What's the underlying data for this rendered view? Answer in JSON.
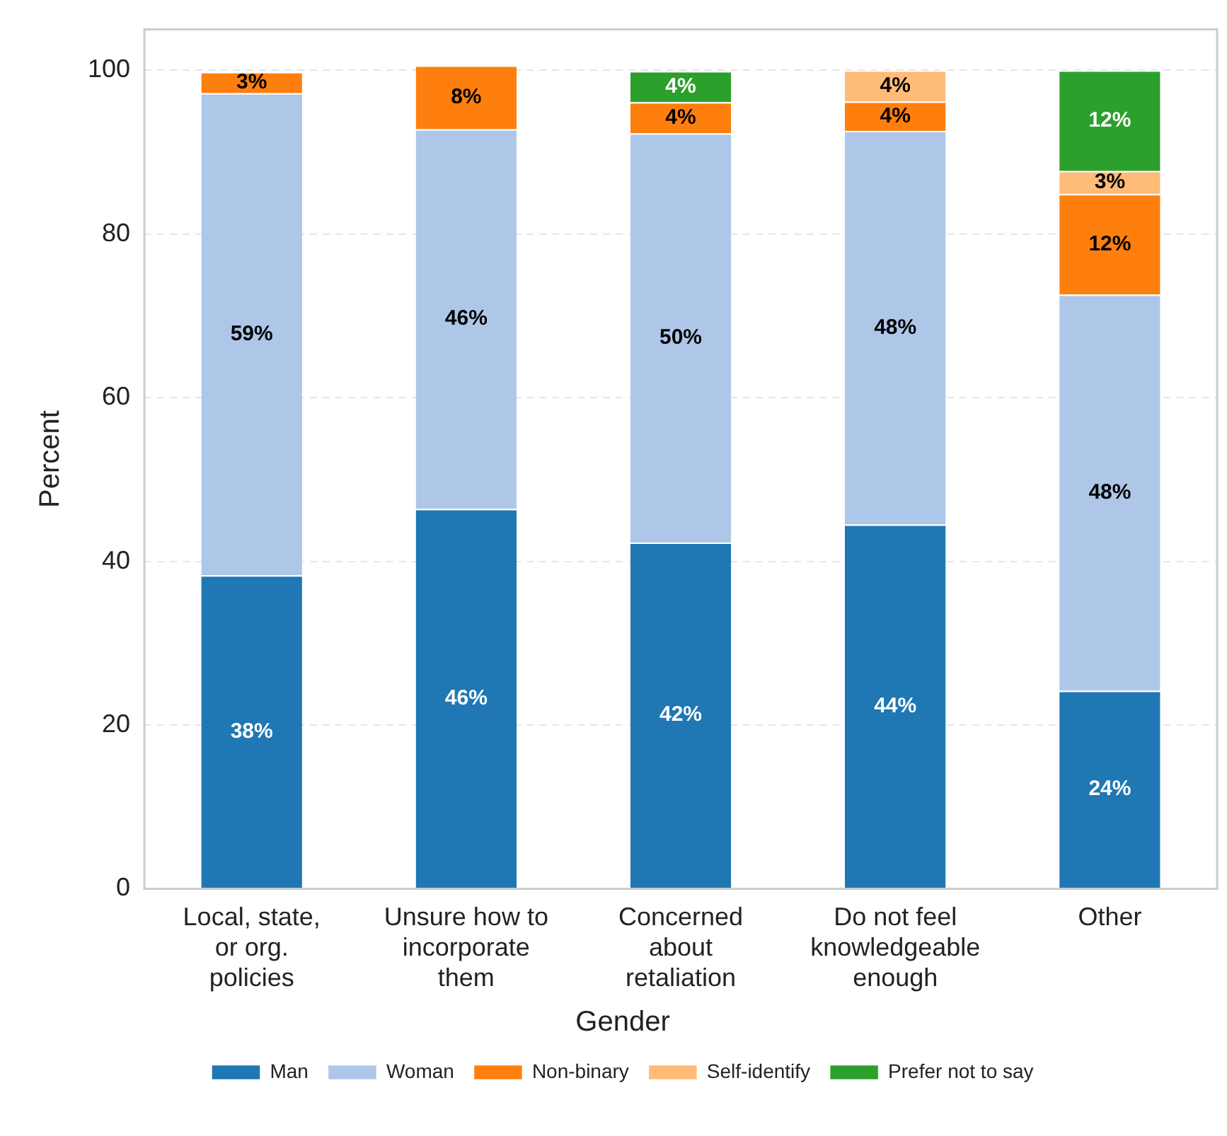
{
  "chart_data": {
    "type": "bar",
    "stacked": true,
    "ylabel": "Percent",
    "legend_title": "Gender",
    "legend": "bottom",
    "grid": "y",
    "categories": [
      "Local, state, or org. policies",
      "Unsure how to incorporate them",
      "Concerned about retaliation",
      "Do not feel knowledgeable enough",
      "Other"
    ],
    "ylim": [
      0,
      105
    ],
    "yticks": [
      0,
      20,
      40,
      60,
      80,
      100
    ],
    "series": [
      {
        "name": "Man",
        "color": "#1f77b4",
        "values": [
          38.3,
          46.4,
          42.3,
          44.5,
          24.2
        ],
        "value_labels": [
          "38%",
          "46%",
          "42%",
          "44%",
          "24%"
        ]
      },
      {
        "name": "Woman",
        "color": "#aec7e8",
        "values": [
          58.9,
          46.4,
          50.0,
          48.1,
          48.4
        ],
        "value_labels": [
          "59%",
          "46%",
          "50%",
          "48%",
          "48%"
        ]
      },
      {
        "name": "Non-binary",
        "color": "#ff7f0e",
        "values": [
          2.6,
          7.8,
          3.8,
          3.6,
          12.3
        ],
        "value_labels": [
          "3%",
          "8%",
          "4%",
          "4%",
          "12%"
        ]
      },
      {
        "name": "Self-identify",
        "color": "#ffbb78",
        "values": [
          null,
          null,
          null,
          3.8,
          2.8
        ],
        "value_labels": [
          null,
          null,
          null,
          "4%",
          "3%"
        ]
      },
      {
        "name": "Prefer not to say",
        "color": "#2ca02c",
        "values": [
          null,
          null,
          3.8,
          null,
          12.3
        ],
        "value_labels": [
          null,
          null,
          "4%",
          null,
          "12%"
        ]
      }
    ]
  }
}
